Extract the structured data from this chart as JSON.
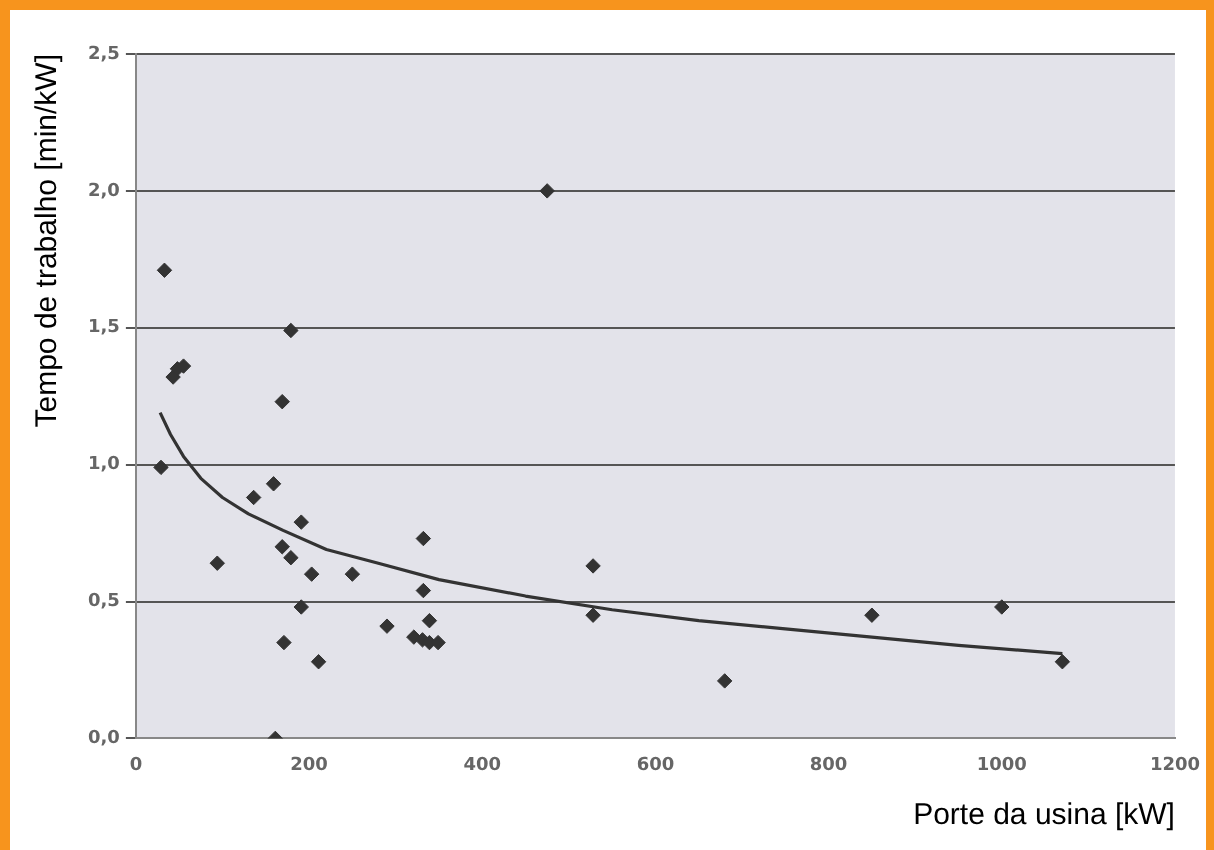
{
  "chart_data": {
    "type": "scatter",
    "xlabel": "Porte da usina [kW]",
    "ylabel": "Tempo de trabalho [min/kW]",
    "xlim": [
      0,
      1200
    ],
    "xticks": [
      0,
      200,
      400,
      600,
      800,
      1000,
      1200
    ],
    "ylim": [
      0,
      2.5
    ],
    "yticks": [
      {
        "value": 0,
        "label": "0,0"
      },
      {
        "value": 0.5,
        "label": "0,5"
      },
      {
        "value": 1,
        "label": "1,0"
      },
      {
        "value": 1.5,
        "label": "1,5"
      },
      {
        "value": 2,
        "label": "2,0"
      },
      {
        "value": 2.5,
        "label": "2,5"
      }
    ],
    "grid": "y",
    "legend": false,
    "series": [
      {
        "type": "scatter",
        "color": "#333333",
        "marker": "diamond",
        "x": [
          33,
          29,
          43,
          48,
          55,
          94,
          136,
          159,
          169,
          179,
          161,
          169,
          179,
          191,
          191,
          171,
          203,
          211,
          250,
          290,
          332,
          332,
          339,
          321,
          331,
          339,
          349,
          475,
          528,
          528,
          680,
          850,
          1000,
          1070
        ],
        "values": [
          1.71,
          0.99,
          1.32,
          1.35,
          1.36,
          0.64,
          0.88,
          0.93,
          1.23,
          1.49,
          0.0,
          0.7,
          0.66,
          0.79,
          0.48,
          0.35,
          0.6,
          0.28,
          0.6,
          0.41,
          0.73,
          0.54,
          0.43,
          0.37,
          0.36,
          0.35,
          0.35,
          2.0,
          0.63,
          0.45,
          0.21,
          0.45,
          0.48,
          0.28
        ]
      },
      {
        "type": "line",
        "color": "#333333",
        "marker": "none",
        "line_style": "solid",
        "x": [
          28,
          40,
          55,
          75,
          100,
          130,
          170,
          220,
          280,
          350,
          450,
          550,
          650,
          750,
          850,
          950,
          1070
        ],
        "values": [
          1.19,
          1.11,
          1.03,
          0.95,
          0.88,
          0.82,
          0.76,
          0.69,
          0.64,
          0.58,
          0.52,
          0.47,
          0.43,
          0.4,
          0.37,
          0.34,
          0.31
        ]
      }
    ]
  }
}
